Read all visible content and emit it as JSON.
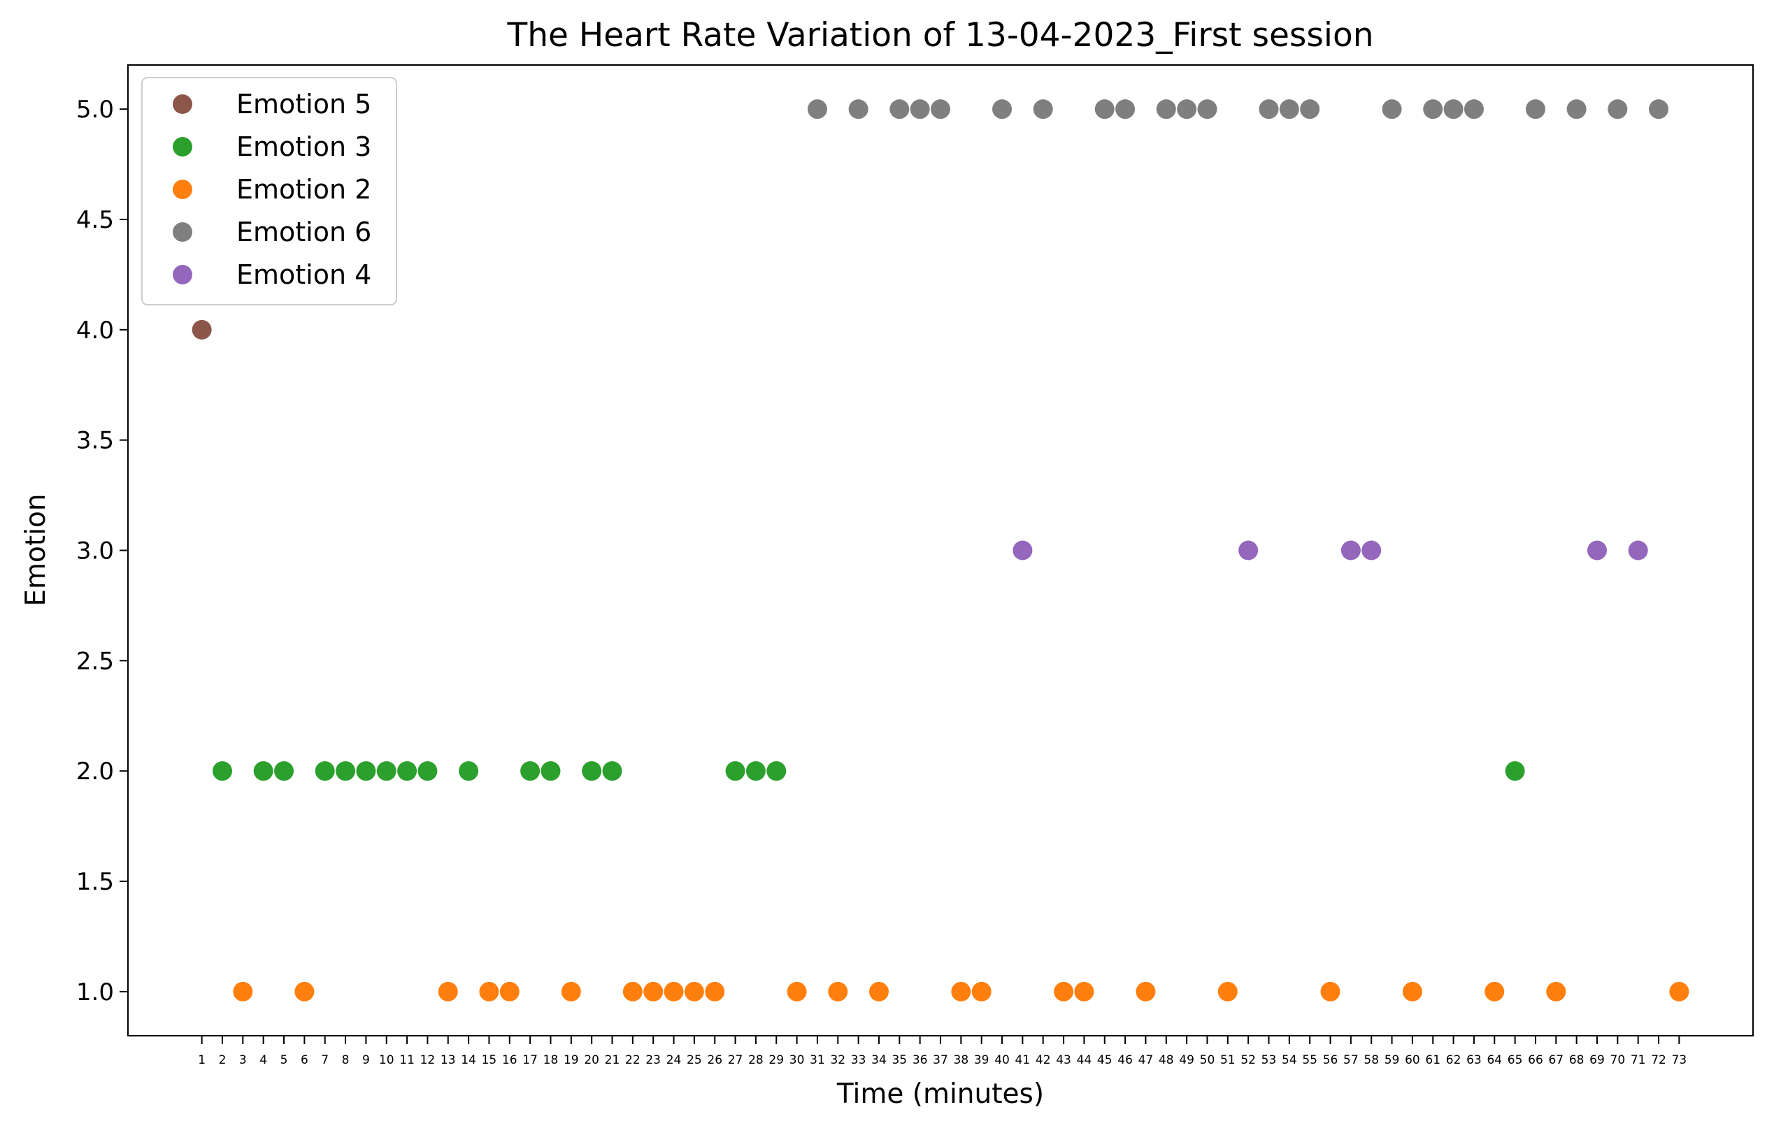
{
  "chart_data": {
    "type": "scatter",
    "title": "The Heart Rate Variation of 13-04-2023_First session",
    "xlabel": "Time (minutes)",
    "ylabel": "Emotion",
    "xlim": [
      -2.6,
      76.6
    ],
    "ylim": [
      0.8,
      5.2
    ],
    "x_ticks": [
      1,
      2,
      3,
      4,
      5,
      6,
      7,
      8,
      9,
      10,
      11,
      12,
      13,
      14,
      15,
      16,
      17,
      18,
      19,
      20,
      21,
      22,
      23,
      24,
      25,
      26,
      27,
      28,
      29,
      30,
      31,
      32,
      33,
      34,
      35,
      36,
      37,
      38,
      39,
      40,
      41,
      42,
      43,
      44,
      45,
      46,
      47,
      48,
      49,
      50,
      51,
      52,
      53,
      54,
      55,
      56,
      57,
      58,
      59,
      60,
      61,
      62,
      63,
      64,
      65,
      66,
      67,
      68,
      69,
      70,
      71,
      72,
      73
    ],
    "y_ticks": [
      "1.0",
      "1.5",
      "2.0",
      "2.5",
      "3.0",
      "3.5",
      "4.0",
      "4.5",
      "5.0"
    ],
    "grid": false,
    "legend_position": "top-left",
    "series": [
      {
        "name": "Emotion 5",
        "color": "#8c564b",
        "x": [
          1
        ],
        "y": [
          4
        ]
      },
      {
        "name": "Emotion 3",
        "color": "#2ca02c",
        "x": [
          2,
          4,
          5,
          7,
          8,
          9,
          10,
          11,
          12,
          14,
          17,
          18,
          20,
          21,
          27,
          28,
          29,
          65
        ],
        "y": [
          2,
          2,
          2,
          2,
          2,
          2,
          2,
          2,
          2,
          2,
          2,
          2,
          2,
          2,
          2,
          2,
          2,
          2
        ]
      },
      {
        "name": "Emotion 2",
        "color": "#ff7f0e",
        "x": [
          3,
          6,
          13,
          15,
          16,
          19,
          22,
          23,
          24,
          25,
          26,
          30,
          32,
          34,
          38,
          39,
          43,
          44,
          47,
          51,
          56,
          60,
          64,
          67,
          73
        ],
        "y": [
          1,
          1,
          1,
          1,
          1,
          1,
          1,
          1,
          1,
          1,
          1,
          1,
          1,
          1,
          1,
          1,
          1,
          1,
          1,
          1,
          1,
          1,
          1,
          1,
          1
        ]
      },
      {
        "name": "Emotion 6",
        "color": "#7f7f7f",
        "x": [
          31,
          33,
          35,
          36,
          37,
          40,
          42,
          45,
          46,
          48,
          49,
          50,
          53,
          54,
          55,
          59,
          61,
          62,
          63,
          66,
          68,
          70,
          72
        ],
        "y": [
          5,
          5,
          5,
          5,
          5,
          5,
          5,
          5,
          5,
          5,
          5,
          5,
          5,
          5,
          5,
          5,
          5,
          5,
          5,
          5,
          5,
          5,
          5
        ]
      },
      {
        "name": "Emotion 4",
        "color": "#9467bd",
        "x": [
          41,
          52,
          57,
          58,
          69,
          71
        ],
        "y": [
          3,
          3,
          3,
          3,
          3,
          3
        ]
      }
    ]
  }
}
